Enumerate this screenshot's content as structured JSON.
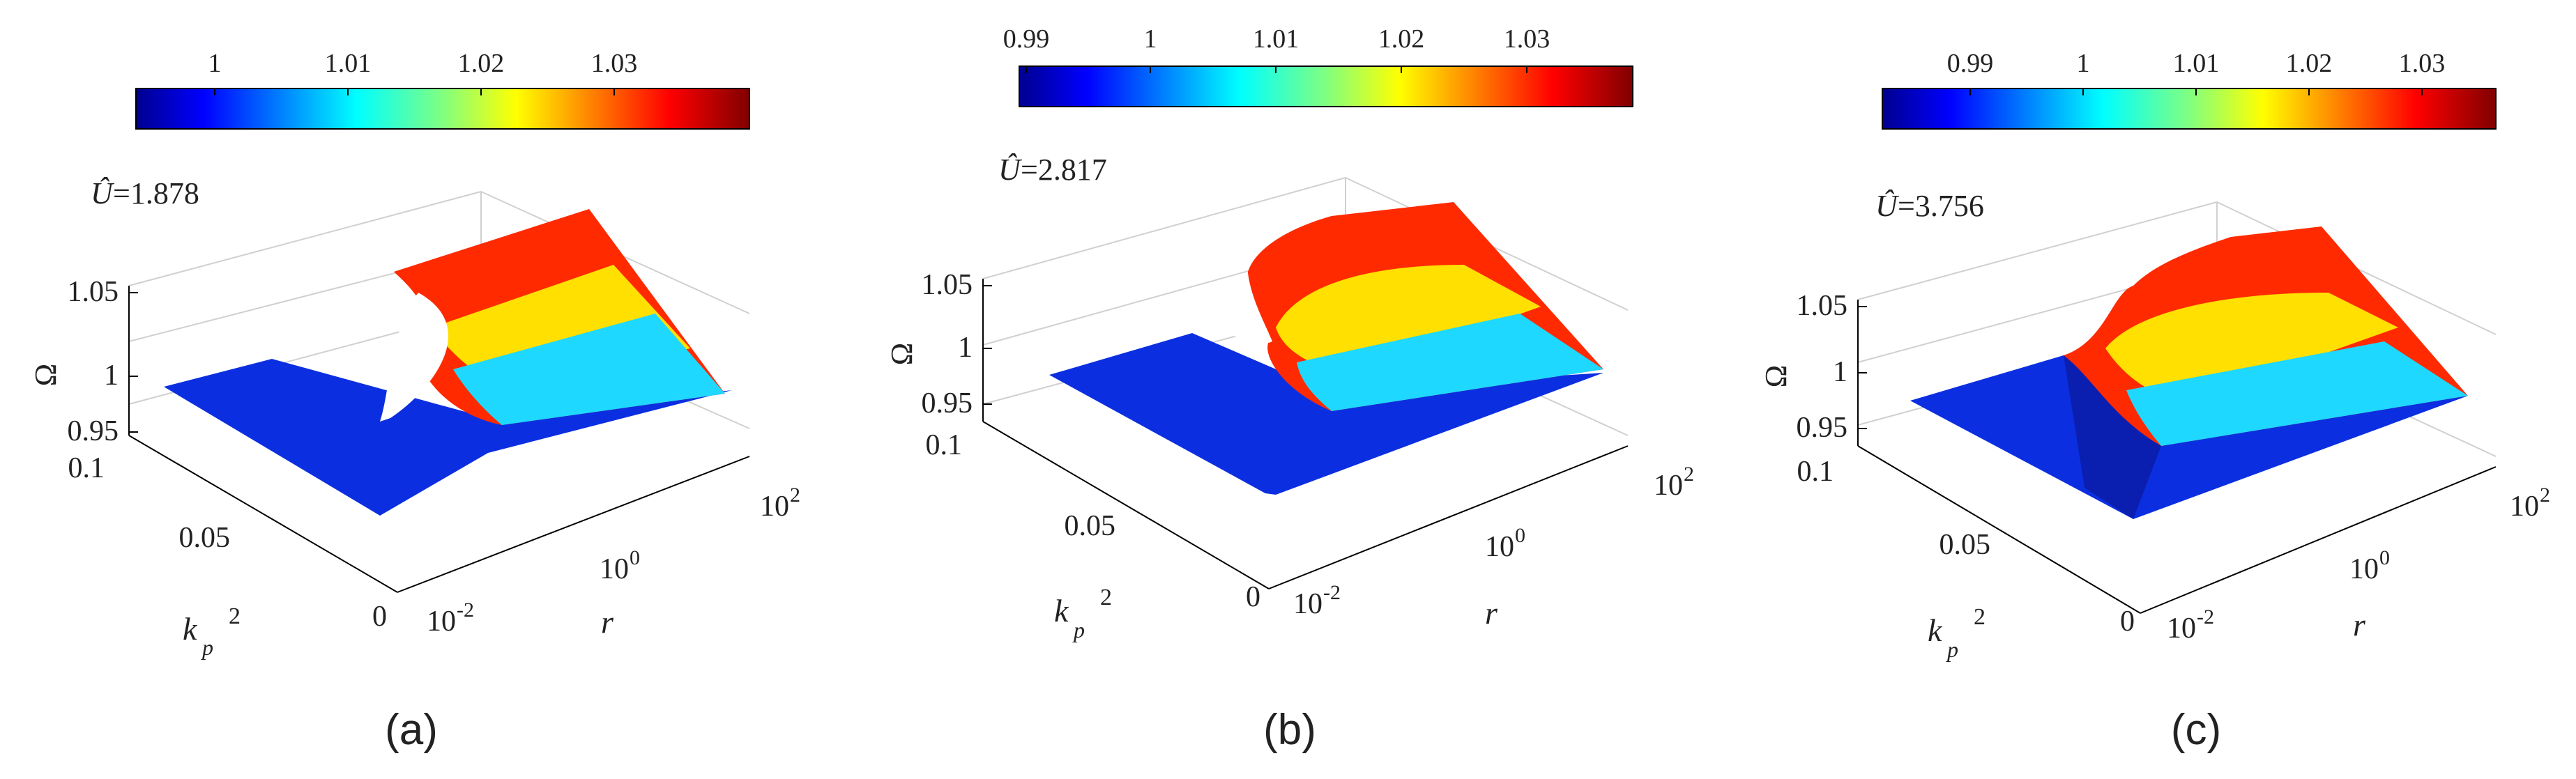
{
  "chart_data": [
    {
      "type": "surface",
      "caption": "(a)",
      "annotation_symbol": "Û",
      "annotation_value": "=1.878",
      "colorbar": {
        "colormap": "jet",
        "ticks": [
          "1",
          "1.01",
          "1.02",
          "1.03"
        ],
        "tick_values": [
          1.0,
          1.01,
          1.02,
          1.03
        ],
        "range": [
          0.992,
          1.038
        ]
      },
      "z_axis": {
        "label": "Ω",
        "ticks": [
          "1.05",
          "1",
          "0.95"
        ],
        "range": [
          0.95,
          1.05
        ]
      },
      "kp_axis": {
        "label": "k",
        "label_sub": "p",
        "label_sup": "2",
        "ticks": [
          "0.1",
          "0.05",
          "0"
        ],
        "range": [
          0,
          0.1
        ]
      },
      "r_axis": {
        "label": "r",
        "ticks": [
          {
            "base": "10",
            "exp": "-2"
          },
          {
            "base": "10",
            "exp": "0"
          },
          {
            "base": "10",
            "exp": "2"
          }
        ],
        "range_log10": [
          -2,
          2
        ]
      },
      "surface_description": "fold-shaped resonant branch rising to ~1.04 at large r, low flat region ~0.99 at small r"
    },
    {
      "type": "surface",
      "caption": "(b)",
      "annotation_symbol": "Û",
      "annotation_value": "=2.817",
      "colorbar": {
        "colormap": "jet",
        "ticks": [
          "0.99",
          "1",
          "1.01",
          "1.02",
          "1.03"
        ],
        "tick_values": [
          0.99,
          1.0,
          1.01,
          1.02,
          1.03
        ],
        "range": [
          0.988,
          1.037
        ]
      },
      "z_axis": {
        "label": "Ω",
        "ticks": [
          "1.05",
          "1",
          "0.95"
        ],
        "range": [
          0.95,
          1.05
        ]
      },
      "kp_axis": {
        "label": "k",
        "label_sub": "p",
        "label_sup": "2",
        "ticks": [
          "0.1",
          "0.05",
          "0"
        ],
        "range": [
          0,
          0.1
        ]
      },
      "r_axis": {
        "label": "r",
        "ticks": [
          {
            "base": "10",
            "exp": "-2"
          },
          {
            "base": "10",
            "exp": "0"
          },
          {
            "base": "10",
            "exp": "2"
          }
        ],
        "range_log10": [
          -2,
          2
        ]
      }
    },
    {
      "type": "surface",
      "caption": "(c)",
      "annotation_symbol": "Û",
      "annotation_value": "=3.756",
      "colorbar": {
        "colormap": "jet",
        "ticks": [
          "0.99",
          "1",
          "1.01",
          "1.02",
          "1.03"
        ],
        "tick_values": [
          0.99,
          1.0,
          1.01,
          1.02,
          1.03
        ],
        "range": [
          0.982,
          1.036
        ]
      },
      "z_axis": {
        "label": "Ω",
        "ticks": [
          "1.05",
          "1",
          "0.95"
        ],
        "range": [
          0.95,
          1.05
        ]
      },
      "kp_axis": {
        "label": "k",
        "label_sub": "p",
        "label_sup": "2",
        "ticks": [
          "0.1",
          "0.05",
          "0"
        ],
        "range": [
          0,
          0.1
        ]
      },
      "r_axis": {
        "label": "r",
        "ticks": [
          {
            "base": "10",
            "exp": "-2"
          },
          {
            "base": "10",
            "exp": "0"
          },
          {
            "base": "10",
            "exp": "2"
          }
        ],
        "range_log10": [
          -2,
          2
        ]
      }
    }
  ]
}
